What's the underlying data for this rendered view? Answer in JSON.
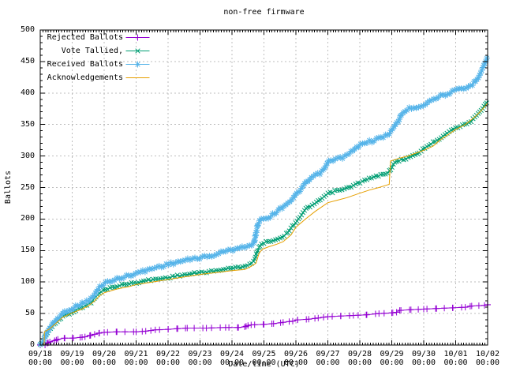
{
  "colors": {
    "background": "#ffffff",
    "axis": "#000000",
    "text": "#000000",
    "grid": "#bdbdbd",
    "rejected": "#9400d3",
    "tallied": "#009e73",
    "received": "#56b4e9",
    "acknowledgements": "#e69f00"
  },
  "chart_data": {
    "type": "line",
    "title": "non-free firmware",
    "xlabel": "Date/time (UTC)",
    "ylabel": "Ballots",
    "ylim": [
      0,
      500
    ],
    "y_major_step": 50,
    "y_minor_step": 10,
    "y_ticks": [
      "0",
      "50",
      "100",
      "150",
      "200",
      "250",
      "300",
      "350",
      "400",
      "450",
      "500"
    ],
    "x_days": 14,
    "x_minor_per_day": 12,
    "x_unit": "days since 09/18 00:00 (UTC)",
    "grid": true,
    "legend_position": "top-left",
    "x_ticks": [
      {
        "date": "09/18",
        "time": "00:00"
      },
      {
        "date": "09/19",
        "time": "00:00"
      },
      {
        "date": "09/20",
        "time": "00:00"
      },
      {
        "date": "09/21",
        "time": "00:00"
      },
      {
        "date": "09/22",
        "time": "00:00"
      },
      {
        "date": "09/23",
        "time": "00:00"
      },
      {
        "date": "09/24",
        "time": "00:00"
      },
      {
        "date": "09/25",
        "time": "00:00"
      },
      {
        "date": "09/26",
        "time": "00:00"
      },
      {
        "date": "09/27",
        "time": "00:00"
      },
      {
        "date": "09/28",
        "time": "00:00"
      },
      {
        "date": "09/29",
        "time": "00:00"
      },
      {
        "date": "09/30",
        "time": "00:00"
      },
      {
        "date": "10/01",
        "time": "00:00"
      },
      {
        "date": "10/02",
        "time": "00:00"
      }
    ],
    "series": [
      {
        "name": "Rejected Ballots",
        "color": "#9400d3",
        "marker": "plus",
        "points": [
          [
            0,
            0
          ],
          [
            0.15,
            0
          ],
          [
            0.22,
            3
          ],
          [
            0.3,
            5
          ],
          [
            0.45,
            7
          ],
          [
            0.55,
            9
          ],
          [
            0.75,
            11
          ],
          [
            1.0,
            11
          ],
          [
            1.25,
            12
          ],
          [
            1.4,
            13
          ],
          [
            1.55,
            15
          ],
          [
            1.7,
            17
          ],
          [
            1.85,
            19
          ],
          [
            2.0,
            20
          ],
          [
            2.4,
            21
          ],
          [
            3.0,
            21
          ],
          [
            3.3,
            22
          ],
          [
            3.6,
            24
          ],
          [
            4.0,
            25
          ],
          [
            4.3,
            26
          ],
          [
            4.6,
            27
          ],
          [
            5.2,
            27
          ],
          [
            5.8,
            28
          ],
          [
            6.2,
            28
          ],
          [
            6.4,
            29
          ],
          [
            6.5,
            31
          ],
          [
            6.6,
            32
          ],
          [
            7.0,
            33
          ],
          [
            7.3,
            34
          ],
          [
            7.6,
            36
          ],
          [
            7.9,
            38
          ],
          [
            8.05,
            40
          ],
          [
            8.4,
            41
          ],
          [
            8.7,
            43
          ],
          [
            9.0,
            45
          ],
          [
            9.4,
            46
          ],
          [
            9.8,
            47
          ],
          [
            10.2,
            48
          ],
          [
            10.6,
            50
          ],
          [
            11.0,
            51
          ],
          [
            11.15,
            52
          ],
          [
            11.25,
            55
          ],
          [
            11.6,
            56
          ],
          [
            12.0,
            57
          ],
          [
            12.4,
            58
          ],
          [
            12.9,
            59
          ],
          [
            13.3,
            60
          ],
          [
            13.5,
            62
          ],
          [
            13.9,
            63
          ],
          [
            14.0,
            64
          ]
        ]
      },
      {
        "name": "Vote Tallied,",
        "color": "#009e73",
        "marker": "cross",
        "points": [
          [
            0,
            0
          ],
          [
            0.1,
            8
          ],
          [
            0.2,
            18
          ],
          [
            0.3,
            25
          ],
          [
            0.45,
            33
          ],
          [
            0.6,
            41
          ],
          [
            0.75,
            47
          ],
          [
            1.0,
            52
          ],
          [
            1.2,
            58
          ],
          [
            1.4,
            62
          ],
          [
            1.6,
            68
          ],
          [
            1.8,
            80
          ],
          [
            1.95,
            86
          ],
          [
            2.0,
            88
          ],
          [
            2.3,
            92
          ],
          [
            2.6,
            96
          ],
          [
            3.0,
            99
          ],
          [
            3.3,
            102
          ],
          [
            3.7,
            105
          ],
          [
            4.0,
            107
          ],
          [
            4.3,
            110
          ],
          [
            4.6,
            112
          ],
          [
            5.0,
            115
          ],
          [
            5.4,
            117
          ],
          [
            5.7,
            120
          ],
          [
            6.0,
            122
          ],
          [
            6.3,
            124
          ],
          [
            6.55,
            128
          ],
          [
            6.7,
            134
          ],
          [
            6.8,
            150
          ],
          [
            6.9,
            160
          ],
          [
            7.15,
            165
          ],
          [
            7.3,
            166
          ],
          [
            7.5,
            170
          ],
          [
            7.7,
            176
          ],
          [
            7.85,
            186
          ],
          [
            8.0,
            195
          ],
          [
            8.15,
            205
          ],
          [
            8.35,
            218
          ],
          [
            8.6,
            224
          ],
          [
            8.8,
            232
          ],
          [
            9.0,
            240
          ],
          [
            9.2,
            244
          ],
          [
            9.5,
            247
          ],
          [
            9.7,
            251
          ],
          [
            10.0,
            258
          ],
          [
            10.3,
            264
          ],
          [
            10.6,
            269
          ],
          [
            10.9,
            274
          ],
          [
            11.0,
            282
          ],
          [
            11.1,
            290
          ],
          [
            11.3,
            294
          ],
          [
            11.5,
            297
          ],
          [
            11.8,
            303
          ],
          [
            12.0,
            312
          ],
          [
            12.25,
            320
          ],
          [
            12.5,
            328
          ],
          [
            12.7,
            336
          ],
          [
            13.0,
            345
          ],
          [
            13.2,
            348
          ],
          [
            13.5,
            356
          ],
          [
            13.7,
            366
          ],
          [
            13.85,
            376
          ],
          [
            14.0,
            388
          ]
        ]
      },
      {
        "name": "Received Ballots",
        "color": "#56b4e9",
        "marker": "star",
        "points": [
          [
            0,
            0
          ],
          [
            0.07,
            4
          ],
          [
            0.12,
            10
          ],
          [
            0.2,
            20
          ],
          [
            0.3,
            27
          ],
          [
            0.45,
            37
          ],
          [
            0.6,
            45
          ],
          [
            0.75,
            52
          ],
          [
            0.9,
            56
          ],
          [
            1.0,
            58
          ],
          [
            1.15,
            62
          ],
          [
            1.33,
            67
          ],
          [
            1.5,
            70
          ],
          [
            1.65,
            76
          ],
          [
            1.8,
            88
          ],
          [
            1.95,
            96
          ],
          [
            2.0,
            98
          ],
          [
            2.2,
            102
          ],
          [
            2.5,
            106
          ],
          [
            2.8,
            111
          ],
          [
            3.0,
            114
          ],
          [
            3.3,
            118
          ],
          [
            3.6,
            123
          ],
          [
            4.0,
            128
          ],
          [
            4.3,
            132
          ],
          [
            4.6,
            135
          ],
          [
            5.0,
            139
          ],
          [
            5.35,
            141
          ],
          [
            5.6,
            146
          ],
          [
            5.8,
            149
          ],
          [
            6.0,
            151
          ],
          [
            6.2,
            155
          ],
          [
            6.55,
            157
          ],
          [
            6.68,
            160
          ],
          [
            6.8,
            190
          ],
          [
            6.88,
            200
          ],
          [
            7.1,
            202
          ],
          [
            7.25,
            206
          ],
          [
            7.4,
            212
          ],
          [
            7.6,
            220
          ],
          [
            7.9,
            232
          ],
          [
            8.0,
            238
          ],
          [
            8.15,
            247
          ],
          [
            8.3,
            256
          ],
          [
            8.5,
            266
          ],
          [
            8.65,
            270
          ],
          [
            8.85,
            276
          ],
          [
            9.0,
            290
          ],
          [
            9.15,
            294
          ],
          [
            9.4,
            297
          ],
          [
            9.6,
            301
          ],
          [
            9.8,
            309
          ],
          [
            10.0,
            317
          ],
          [
            10.15,
            322
          ],
          [
            10.4,
            324
          ],
          [
            10.6,
            328
          ],
          [
            10.8,
            332
          ],
          [
            10.95,
            338
          ],
          [
            11.05,
            344
          ],
          [
            11.2,
            355
          ],
          [
            11.3,
            366
          ],
          [
            11.45,
            373
          ],
          [
            11.6,
            376
          ],
          [
            12.0,
            381
          ],
          [
            12.2,
            388
          ],
          [
            12.45,
            394
          ],
          [
            12.7,
            398
          ],
          [
            13.0,
            404
          ],
          [
            13.35,
            408
          ],
          [
            13.55,
            415
          ],
          [
            13.7,
            425
          ],
          [
            13.85,
            440
          ],
          [
            13.95,
            452
          ],
          [
            14.0,
            457
          ]
        ]
      },
      {
        "name": "Acknowledgements",
        "color": "#e69f00",
        "marker": "none",
        "points": [
          [
            0,
            0
          ],
          [
            0.12,
            0
          ],
          [
            0.13,
            21
          ],
          [
            0.3,
            26
          ],
          [
            0.5,
            35
          ],
          [
            0.7,
            44
          ],
          [
            1.0,
            51
          ],
          [
            1.3,
            57
          ],
          [
            1.5,
            62
          ],
          [
            1.7,
            70
          ],
          [
            1.85,
            78
          ],
          [
            2.0,
            83
          ],
          [
            2.4,
            89
          ],
          [
            2.8,
            93
          ],
          [
            3.0,
            96
          ],
          [
            3.5,
            100
          ],
          [
            4.0,
            104
          ],
          [
            4.5,
            108
          ],
          [
            5.0,
            112
          ],
          [
            5.5,
            115
          ],
          [
            6.0,
            118
          ],
          [
            6.4,
            120
          ],
          [
            6.6,
            125
          ],
          [
            6.75,
            130
          ],
          [
            6.85,
            146
          ],
          [
            6.95,
            152
          ],
          [
            7.15,
            156
          ],
          [
            7.4,
            160
          ],
          [
            7.6,
            164
          ],
          [
            7.85,
            175
          ],
          [
            8.0,
            187
          ],
          [
            8.3,
            200
          ],
          [
            8.6,
            212
          ],
          [
            9.0,
            226
          ],
          [
            9.3,
            230
          ],
          [
            9.6,
            234
          ],
          [
            10.0,
            241
          ],
          [
            10.3,
            246
          ],
          [
            10.6,
            250
          ],
          [
            10.85,
            254
          ],
          [
            10.92,
            255
          ],
          [
            10.96,
            292
          ],
          [
            11.2,
            296
          ],
          [
            11.5,
            300
          ],
          [
            12.0,
            309
          ],
          [
            12.3,
            316
          ],
          [
            12.5,
            325
          ],
          [
            13.0,
            342
          ],
          [
            13.3,
            350
          ],
          [
            13.6,
            362
          ],
          [
            13.8,
            372
          ],
          [
            14.0,
            384
          ]
        ]
      }
    ]
  }
}
